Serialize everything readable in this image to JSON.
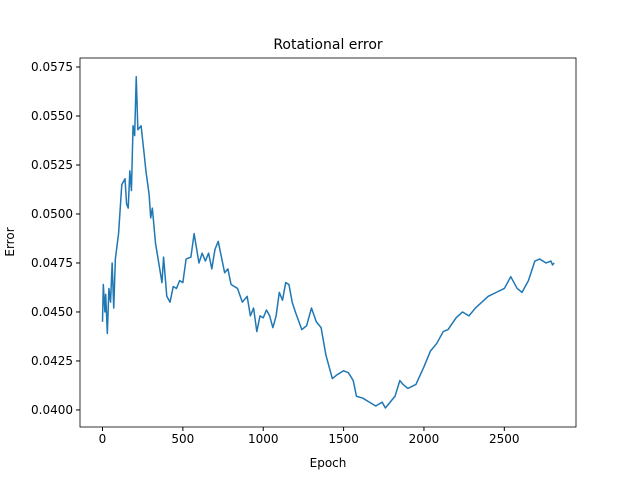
{
  "chart_data": {
    "type": "line",
    "title": "Rotational error",
    "x_label": "Epoch",
    "y_label": "Error",
    "x": [
      0,
      5,
      15,
      20,
      30,
      40,
      50,
      60,
      70,
      80,
      100,
      120,
      140,
      150,
      160,
      170,
      180,
      190,
      200,
      210,
      220,
      240,
      260,
      270,
      290,
      300,
      310,
      330,
      350,
      370,
      380,
      400,
      420,
      440,
      460,
      480,
      500,
      520,
      550,
      570,
      600,
      620,
      640,
      660,
      680,
      700,
      720,
      740,
      760,
      780,
      800,
      840,
      870,
      900,
      920,
      940,
      960,
      980,
      1000,
      1020,
      1040,
      1060,
      1080,
      1100,
      1120,
      1140,
      1160,
      1180,
      1200,
      1240,
      1270,
      1300,
      1330,
      1360,
      1390,
      1410,
      1430,
      1460,
      1500,
      1530,
      1560,
      1580,
      1620,
      1660,
      1700,
      1740,
      1760,
      1800,
      1820,
      1850,
      1870,
      1900,
      1950,
      2000,
      2040,
      2080,
      2120,
      2150,
      2200,
      2240,
      2280,
      2320,
      2360,
      2400,
      2450,
      2500,
      2540,
      2580,
      2610,
      2650,
      2690,
      2720,
      2760,
      2790,
      2800,
      2810
    ],
    "series": [
      {
        "name": "Error",
        "color": "#1f77b4",
        "values": [
          0.0445,
          0.0464,
          0.045,
          0.0459,
          0.0439,
          0.0462,
          0.0455,
          0.0475,
          0.0452,
          0.0477,
          0.049,
          0.0515,
          0.0518,
          0.0505,
          0.0503,
          0.0522,
          0.0512,
          0.0545,
          0.054,
          0.057,
          0.0543,
          0.0545,
          0.053,
          0.0522,
          0.051,
          0.0498,
          0.0503,
          0.0485,
          0.0475,
          0.0465,
          0.0478,
          0.0458,
          0.0455,
          0.0463,
          0.0462,
          0.0466,
          0.0465,
          0.0477,
          0.0478,
          0.049,
          0.0475,
          0.048,
          0.0476,
          0.048,
          0.0472,
          0.0482,
          0.0486,
          0.0478,
          0.047,
          0.0472,
          0.0464,
          0.0462,
          0.0455,
          0.0458,
          0.0448,
          0.0452,
          0.044,
          0.0448,
          0.0447,
          0.0451,
          0.0448,
          0.0442,
          0.0448,
          0.046,
          0.0456,
          0.0465,
          0.0464,
          0.0455,
          0.045,
          0.0441,
          0.0443,
          0.0452,
          0.0445,
          0.0442,
          0.0428,
          0.0422,
          0.0416,
          0.0418,
          0.042,
          0.0419,
          0.0415,
          0.0407,
          0.0406,
          0.0404,
          0.0402,
          0.0404,
          0.0401,
          0.0405,
          0.0407,
          0.0415,
          0.0413,
          0.0411,
          0.0413,
          0.0422,
          0.043,
          0.0434,
          0.044,
          0.0441,
          0.0447,
          0.045,
          0.0448,
          0.0452,
          0.0455,
          0.0458,
          0.046,
          0.0462,
          0.0468,
          0.0462,
          0.046,
          0.0466,
          0.0476,
          0.0477,
          0.0475,
          0.0476,
          0.0474,
          0.0475
        ]
      }
    ],
    "xlim": [
      -140,
      2946
    ],
    "xticks": [
      0,
      500,
      1000,
      1500,
      2000,
      2500
    ],
    "ylim": [
      0.03913,
      0.05796
    ],
    "yticks": [
      {
        "value": 0.04,
        "label": "0.0400"
      },
      0.0425,
      {
        "value": 0.045,
        "label": "0.0450"
      },
      0.0475,
      {
        "value": 0.05,
        "label": "0.0500"
      },
      0.0525,
      {
        "value": 0.055,
        "label": "0.0550"
      },
      0.0575
    ]
  }
}
